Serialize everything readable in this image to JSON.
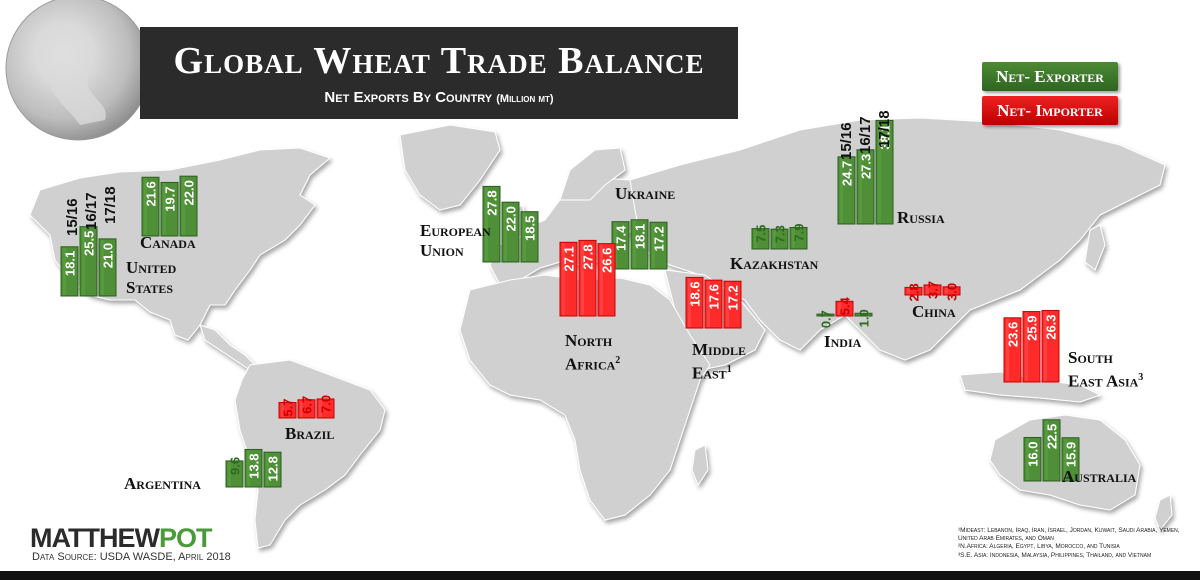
{
  "title": "Global Wheat Trade Balance",
  "subtitle": "Net Exports By Country",
  "subtitle_unit": "(Million mt)",
  "legend": {
    "exporter": "Net- Exporter",
    "importer": "Net- Importer"
  },
  "colors": {
    "exporter": "#3f7a2c",
    "importer": "#e01010",
    "map_land": "#cfcfcf",
    "title_bg": "#2b2b2b"
  },
  "year_labels": [
    "15/16",
    "16/17",
    "17/18"
  ],
  "brand": {
    "part1": "MATTHEW",
    "part2": "POT"
  },
  "source": "Data Source: USDA WASDE, April 2018",
  "footnotes": [
    "¹Mideast: Lebanon, Iraq, Iran, Israel, Jordan, Kuwait, Saudi Arabia, Yemen, United Arab Emirates, and Oman",
    "²N.Africa: Algeria, Egypt, Libya, Morocco, and Tunisia",
    "³S.E. Asia: Indonesia, Malaysia, Philippines, Thailand, and Vietnam"
  ],
  "chart_data": {
    "type": "bar",
    "title": "Global Wheat Trade Balance",
    "subtitle": "Net Exports By Country (Million mt)",
    "categories": [
      "15/16",
      "16/17",
      "17/18"
    ],
    "series": [
      {
        "name": "United States",
        "status": "exporter",
        "values": [
          18.1,
          25.5,
          21.0
        ]
      },
      {
        "name": "Canada",
        "status": "exporter",
        "values": [
          21.6,
          19.7,
          22.0
        ]
      },
      {
        "name": "European Union",
        "status": "exporter",
        "values": [
          27.8,
          22.0,
          18.5
        ]
      },
      {
        "name": "Ukraine",
        "status": "exporter",
        "values": [
          17.4,
          18.1,
          17.2
        ]
      },
      {
        "name": "Kazakhstan",
        "status": "exporter",
        "values": [
          7.5,
          7.3,
          7.9
        ]
      },
      {
        "name": "Russia",
        "status": "exporter",
        "values": [
          24.7,
          27.3,
          38.1
        ]
      },
      {
        "name": "North Africa",
        "status": "importer",
        "values": [
          27.1,
          27.8,
          26.6
        ]
      },
      {
        "name": "Middle East",
        "status": "importer",
        "values": [
          18.6,
          17.6,
          17.2
        ]
      },
      {
        "name": "India",
        "status": "mixed",
        "values": [
          0.7,
          5.4,
          1.0
        ],
        "statuses": [
          "exporter",
          "importer",
          "exporter"
        ]
      },
      {
        "name": "China",
        "status": "importer",
        "values": [
          2.8,
          3.7,
          3.0
        ]
      },
      {
        "name": "South East Asia",
        "status": "importer",
        "values": [
          23.6,
          25.9,
          26.3
        ]
      },
      {
        "name": "Brazil",
        "status": "importer",
        "values": [
          5.7,
          6.7,
          7.0
        ]
      },
      {
        "name": "Argentina",
        "status": "exporter",
        "values": [
          9.6,
          13.8,
          12.8
        ]
      },
      {
        "name": "Australia",
        "status": "exporter",
        "values": [
          16.0,
          22.5,
          15.9
        ]
      }
    ],
    "region_labels": [
      {
        "id": "us",
        "lines": [
          "United",
          "States"
        ],
        "sup": ""
      },
      {
        "id": "canada",
        "lines": [
          "Canada"
        ],
        "sup": ""
      },
      {
        "id": "eu",
        "lines": [
          "European",
          "Union"
        ],
        "sup": ""
      },
      {
        "id": "ukraine",
        "lines": [
          "Ukraine"
        ],
        "sup": ""
      },
      {
        "id": "kazakhstan",
        "lines": [
          "Kazakhstan"
        ],
        "sup": ""
      },
      {
        "id": "russia",
        "lines": [
          "Russia"
        ],
        "sup": ""
      },
      {
        "id": "north-africa",
        "lines": [
          "North",
          "Africa"
        ],
        "sup": "2"
      },
      {
        "id": "middle-east",
        "lines": [
          "Middle",
          "East"
        ],
        "sup": "1"
      },
      {
        "id": "india",
        "lines": [
          "India"
        ],
        "sup": ""
      },
      {
        "id": "china",
        "lines": [
          "China"
        ],
        "sup": ""
      },
      {
        "id": "se-asia",
        "lines": [
          "South",
          "East Asia"
        ],
        "sup": "3"
      },
      {
        "id": "brazil",
        "lines": [
          "Brazil"
        ],
        "sup": ""
      },
      {
        "id": "argentina",
        "lines": [
          "Argentina"
        ],
        "sup": ""
      },
      {
        "id": "australia",
        "lines": [
          "Australia"
        ],
        "sup": ""
      }
    ]
  }
}
